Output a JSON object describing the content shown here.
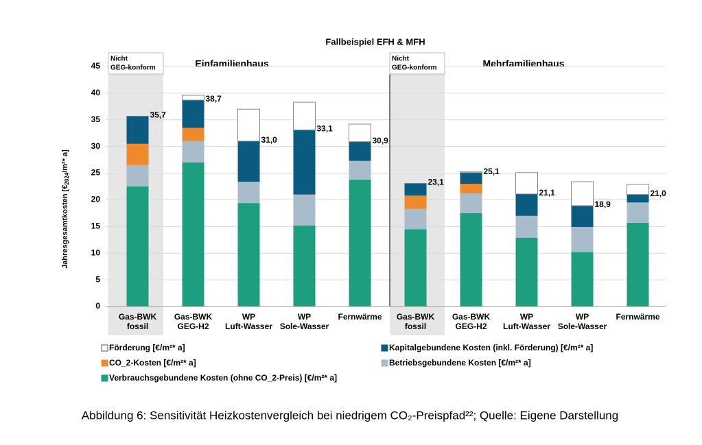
{
  "chart_data": {
    "type": "stacked_bar",
    "title": "Fallbeispiel EFH & MFH",
    "y_label": {
      "main": "Jahresgesamtkosten [€",
      "sub": "2024",
      "rest": "/m²* a]"
    },
    "annotations": {
      "left_group": "Einfamilienhaus",
      "right_group": "Mehrfamilienhaus",
      "note_1": [
        "Nicht",
        "GEG-konform"
      ],
      "note_2": [
        "Nicht",
        "GEG-konform"
      ]
    },
    "categories": [
      [
        "Gas-BWK",
        "fossil"
      ],
      [
        "Gas-BWK",
        "GEG-H2"
      ],
      [
        "WP",
        "Luft-Wasser"
      ],
      [
        "WP",
        "Sole-Wasser"
      ],
      [
        "Fernwärme"
      ],
      [
        "Gas-BWK",
        "fossil"
      ],
      [
        "Gas-BWK",
        "GEG-H2"
      ],
      [
        "WP",
        "Luft-Wasser"
      ],
      [
        "WP",
        "Sole-Wasser"
      ],
      [
        "Fernwärme"
      ]
    ],
    "series": [
      {
        "name": "Verbrauchsgebundene Kosten (ohne CO_2-Preis) [€/m²* a]",
        "color": "#1d9e7e",
        "values": [
          22.5,
          27,
          19.4,
          15.2,
          23.8,
          14.5,
          17.5,
          12.9,
          10.2,
          15.7
        ]
      },
      {
        "name": "Betriebsgebundene Kosten  [€/m²* a]",
        "color": "#a9bccb",
        "values": [
          4.0,
          4.0,
          4.0,
          5.8,
          3.5,
          3.8,
          3.7,
          4.1,
          4.7,
          3.8
        ]
      },
      {
        "name": "CO_2-Kosten [€/m²* a]",
        "color": "#ee8a2c",
        "values": [
          4.0,
          2.5,
          0,
          0,
          0,
          2.5,
          1.8,
          0,
          0,
          0
        ]
      },
      {
        "name": "Kapitalgebundene Kosten (inkl. Förderung) [€/m²* a]",
        "color": "#0b5a80",
        "values": [
          5.2,
          5.2,
          7.6,
          12.1,
          3.6,
          2.3,
          2.1,
          4.1,
          4.0,
          1.5
        ]
      },
      {
        "name": "Förderung [€/m²* a]",
        "color": "#ffffff",
        "values": [
          0,
          0.9,
          6.0,
          5.2,
          3.3,
          0,
          0.2,
          4.0,
          4.5,
          1.9
        ]
      }
    ],
    "totals": {
      "values": [
        35.7,
        38.7,
        31.0,
        33.1,
        30.9,
        23.1,
        25.1,
        21.1,
        18.9,
        21.0
      ],
      "value_labels": [
        "35,7",
        "38,7",
        "31,0",
        "33,1",
        "30,9",
        "23,1",
        "25,1",
        "21,1",
        "18,9",
        "21,0"
      ]
    },
    "ylim": [
      0,
      45
    ],
    "yticks": [
      0,
      5,
      10,
      15,
      20,
      25,
      30,
      35,
      40,
      45
    ],
    "grid": true,
    "caption": "Abbildung 6: Sensitivität Heizkostenvergleich bei niedrigem CO₂-Preispfad²²; Quelle: Eigene Darstellung"
  }
}
